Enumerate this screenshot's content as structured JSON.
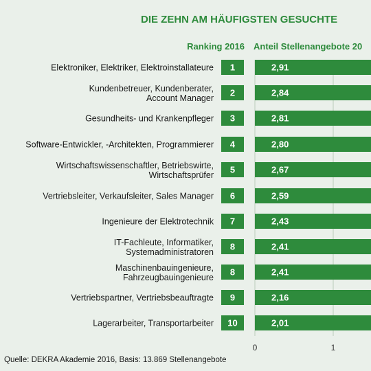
{
  "chart_data": {
    "type": "bar",
    "title": "DIE ZEHN AM HÄUFIGSTEN GESUCHTE",
    "column_headers": {
      "ranking": "Ranking 2016",
      "share": "Anteil Stellenangebote 20"
    },
    "categories": [
      [
        "Elektroniker, Elektriker, Elektroinstallateure"
      ],
      [
        "Kundenbetreuer, Kundenberater,",
        "Account Manager"
      ],
      [
        "Gesundheits- und Krankenpfleger"
      ],
      [
        "Software-Entwickler, -Architekten, Programmierer"
      ],
      [
        "Wirtschaftswissenschaftler, Betriebswirte,",
        "Wirtschaftsprüfer"
      ],
      [
        "Vertriebsleiter, Verkaufsleiter, Sales Manager"
      ],
      [
        "Ingenieure der Elektrotechnik"
      ],
      [
        "IT-Fachleute, Informatiker,",
        "Systemadministratoren"
      ],
      [
        "Maschinenbauingenieure,",
        "Fahrzeugbauingenieure"
      ],
      [
        "Vertriebspartner, Vertriebsbeauftragte"
      ],
      [
        "Lagerarbeiter, Transportarbeiter"
      ]
    ],
    "ranks": [
      "1",
      "2",
      "3",
      "4",
      "5",
      "6",
      "7",
      "8",
      "8",
      "9",
      "10"
    ],
    "values": [
      2.91,
      2.84,
      2.81,
      2.8,
      2.67,
      2.59,
      2.43,
      2.41,
      2.41,
      2.16,
      2.01
    ],
    "value_labels": [
      "2,91",
      "2,84",
      "2,81",
      "2,80",
      "2,67",
      "2,59",
      "2,43",
      "2,41",
      "2,41",
      "2,16",
      "2,01"
    ],
    "x_ticks": [
      "0",
      "1"
    ],
    "xlim": [
      0,
      3
    ],
    "grid": true,
    "source": "Quelle: DEKRA Akademie 2016, Basis: 13.869 Stellenangebote",
    "colors": {
      "bar": "#2e8b3c",
      "rank_box": "#2e8b3c",
      "text_green": "#2e8b3c",
      "gridline": "#b9cbb9",
      "background": "#eaf0ea"
    }
  }
}
